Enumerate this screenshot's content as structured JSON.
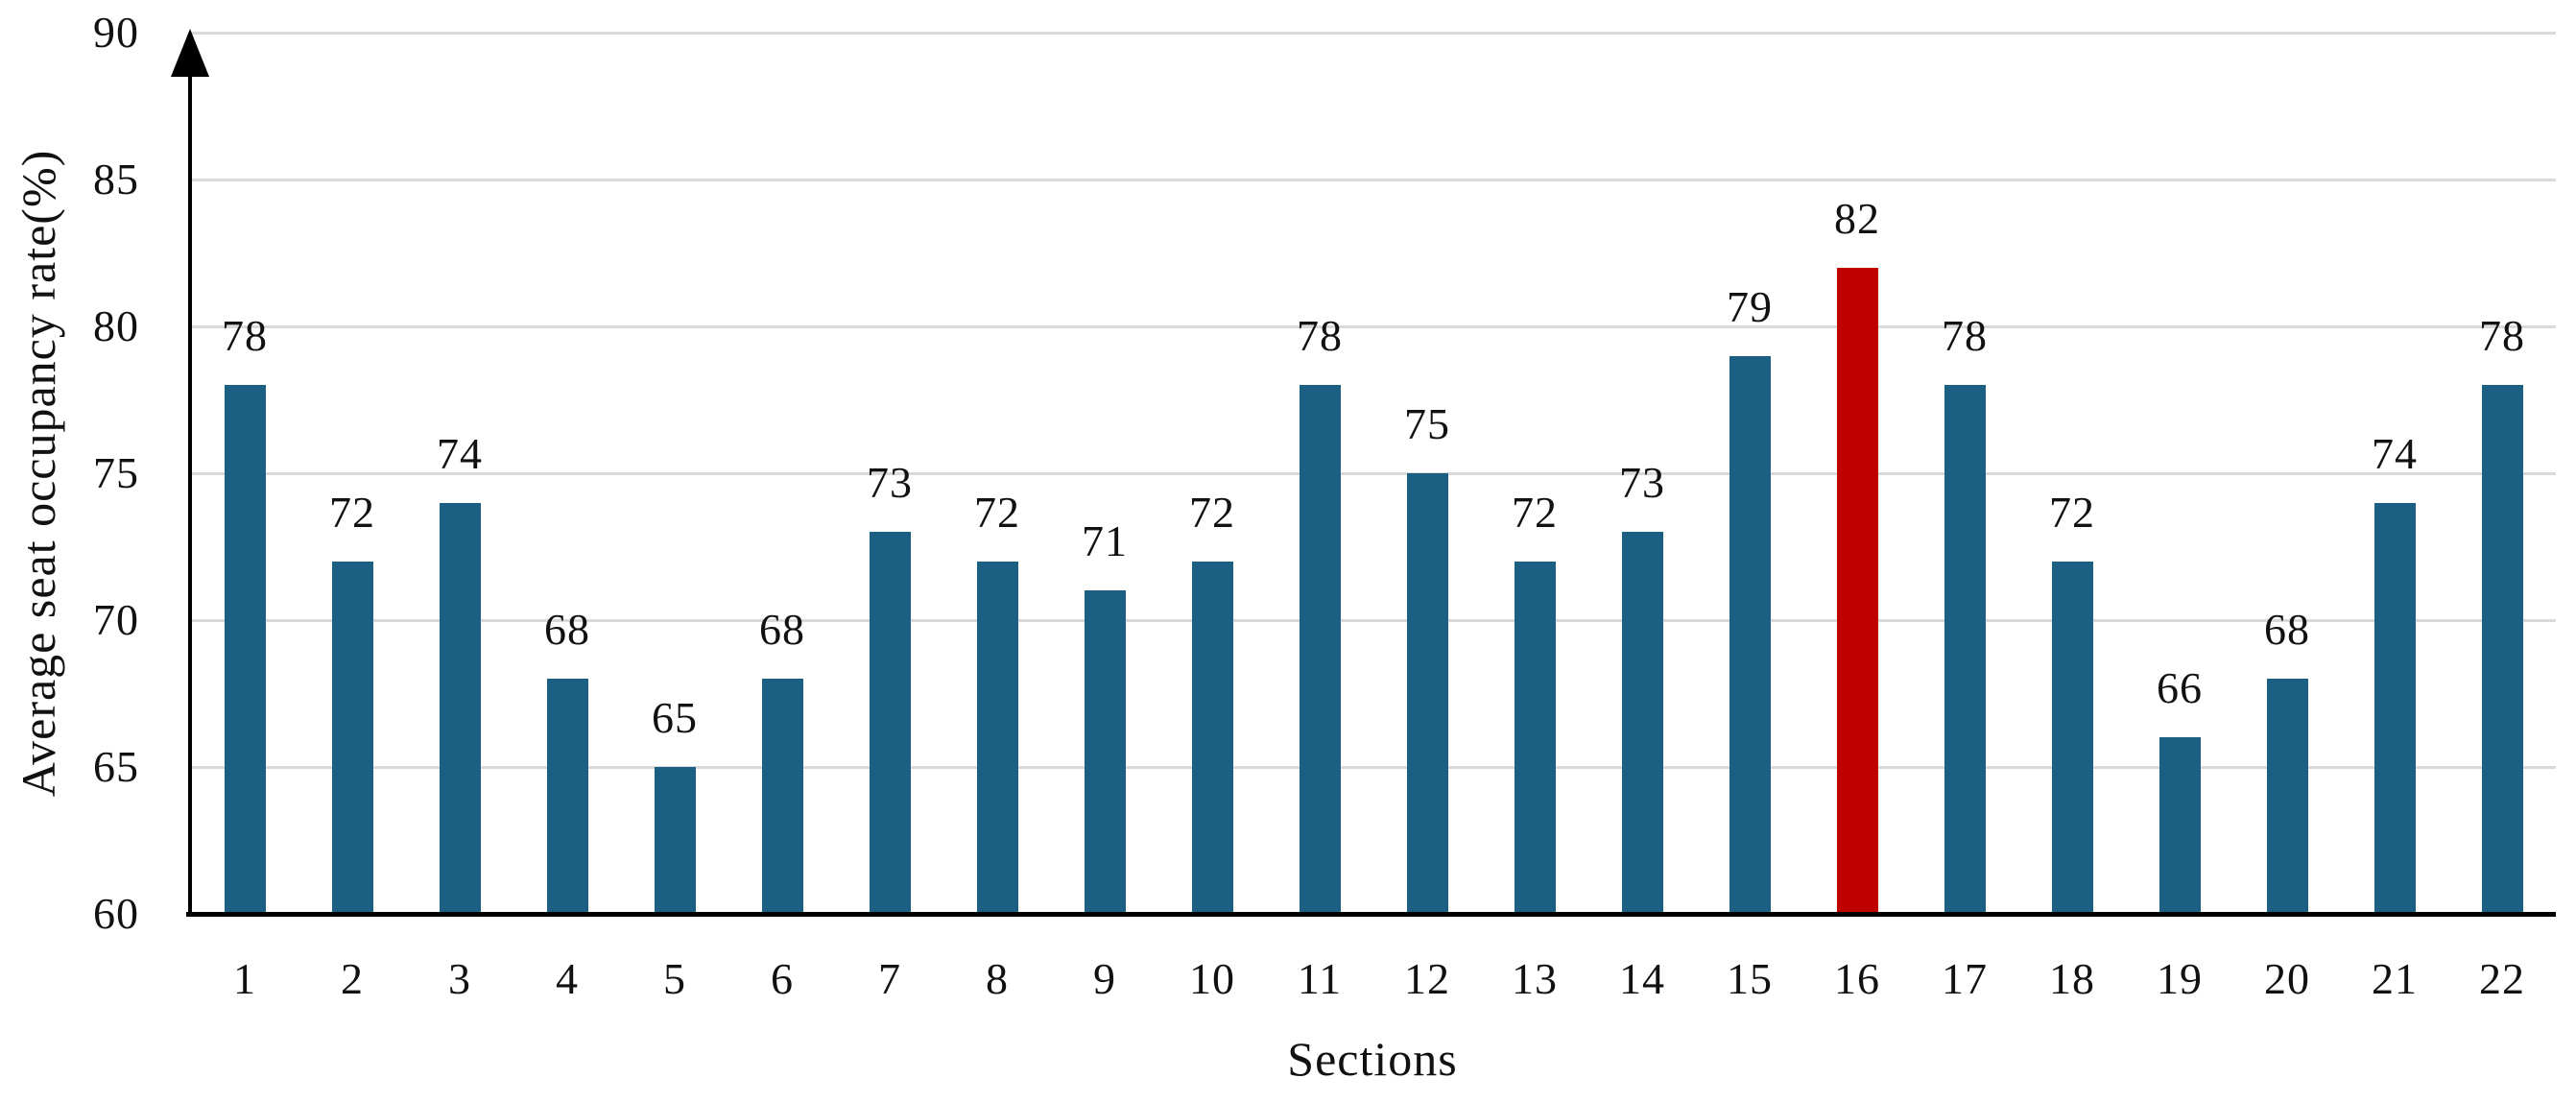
{
  "chart_data": {
    "type": "bar",
    "title": "",
    "xlabel": "Sections",
    "ylabel": "Average seat occupancy rate(%)",
    "categories": [
      "1",
      "2",
      "3",
      "4",
      "5",
      "6",
      "7",
      "8",
      "9",
      "10",
      "11",
      "12",
      "13",
      "14",
      "15",
      "16",
      "17",
      "18",
      "19",
      "20",
      "21",
      "22"
    ],
    "values": [
      78,
      72,
      74,
      68,
      65,
      68,
      73,
      72,
      71,
      72,
      78,
      75,
      72,
      73,
      79,
      82,
      78,
      72,
      66,
      68,
      74,
      78
    ],
    "highlight_index": 15,
    "ylim": [
      60,
      90
    ],
    "yticks": [
      60,
      65,
      70,
      75,
      80,
      85,
      90
    ],
    "grid": "horizontal gridlines on, y-axis arrow at top",
    "legend": "none",
    "colors": {
      "bar": "#1B6082",
      "highlight_bar": "#C00000",
      "gridline": "#D9D9D9",
      "axis": "#000000",
      "text": "#111111"
    }
  }
}
